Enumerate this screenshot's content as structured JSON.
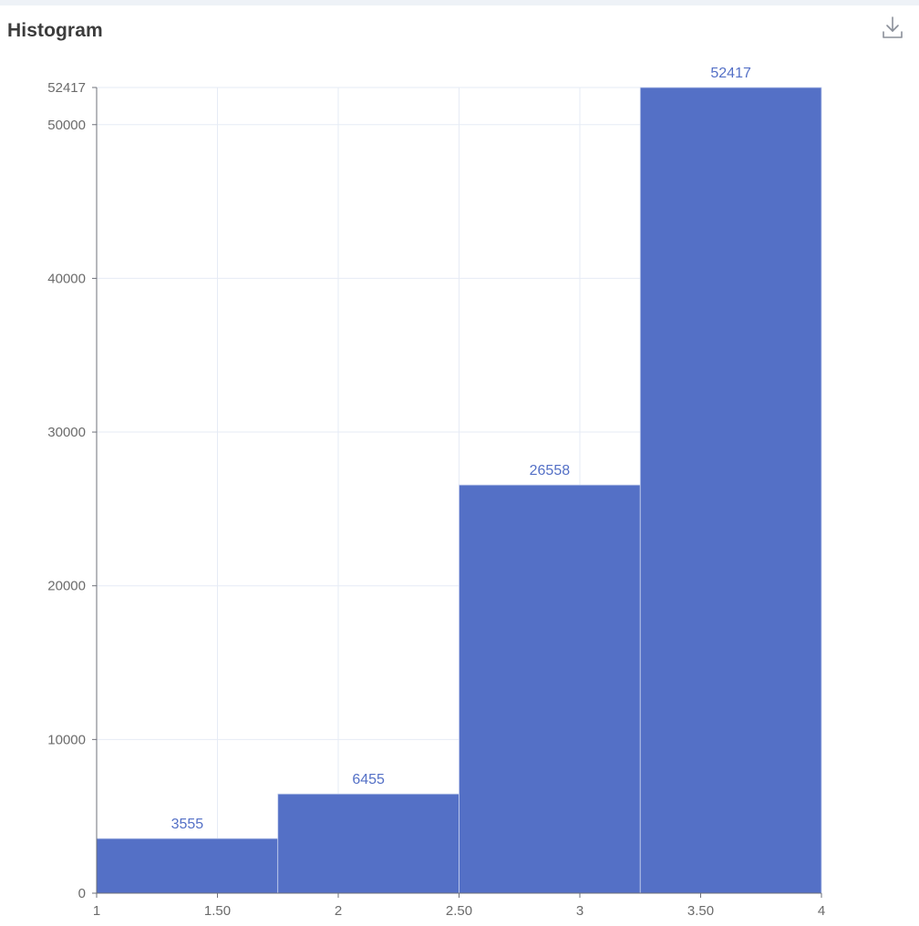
{
  "panel": {
    "title": "Histogram",
    "download_icon": "download-icon"
  },
  "chart_data": {
    "type": "bar",
    "title": "Histogram",
    "xlabel": "",
    "ylabel": "",
    "bins": [
      {
        "x0": 1.0,
        "x1": 1.75,
        "count": 3555
      },
      {
        "x0": 1.75,
        "x1": 2.5,
        "count": 6455
      },
      {
        "x0": 2.5,
        "x1": 3.25,
        "count": 26558
      },
      {
        "x0": 3.25,
        "x1": 4.0,
        "count": 52417
      }
    ],
    "xlim": [
      1,
      4
    ],
    "ylim": [
      0,
      52417
    ],
    "x_ticks": [
      {
        "value": 1,
        "label": "1"
      },
      {
        "value": 1.5,
        "label": "1.50"
      },
      {
        "value": 2,
        "label": "2"
      },
      {
        "value": 2.5,
        "label": "2.50"
      },
      {
        "value": 3,
        "label": "3"
      },
      {
        "value": 3.5,
        "label": "3.50"
      },
      {
        "value": 4,
        "label": "4"
      }
    ],
    "y_ticks": [
      {
        "value": 0,
        "label": "0"
      },
      {
        "value": 10000,
        "label": "10000"
      },
      {
        "value": 20000,
        "label": "20000"
      },
      {
        "value": 30000,
        "label": "30000"
      },
      {
        "value": 40000,
        "label": "40000"
      },
      {
        "value": 50000,
        "label": "50000"
      },
      {
        "value": 52417,
        "label": "52417"
      }
    ],
    "grid": true,
    "bar_color": "#5470c6",
    "bar_edge_color": "#c9d3ef",
    "grid_color": "#e6ebf5",
    "axis_color": "#6e7079",
    "label_color": "#5470c6"
  }
}
